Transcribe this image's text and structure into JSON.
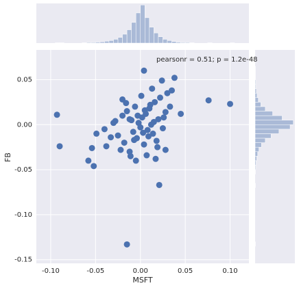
{
  "chart_data": [
    {
      "type": "scatter",
      "annotation": "pearsonr = 0.51; p = 1.2e-48",
      "x_label": "MSFT",
      "y_label": "FB",
      "color": "#4c72b0",
      "grid": true,
      "x": [
        -0.093,
        -0.09,
        -0.058,
        -0.052,
        -0.054,
        -0.049,
        -0.015,
        0.021,
        0.004,
        0.038,
        0.076,
        0.1,
        0.024,
        0.045,
        -0.038,
        -0.033,
        -0.04,
        -0.028,
        -0.025,
        -0.02,
        -0.018,
        -0.015,
        -0.012,
        -0.01,
        -0.008,
        -0.006,
        -0.004,
        -0.002,
        0.0,
        0.002,
        0.004,
        0.006,
        0.008,
        0.01,
        0.012,
        0.014,
        0.016,
        0.018,
        0.02,
        0.022,
        0.025,
        0.028,
        0.03,
        0.033,
        -0.022,
        -0.016,
        -0.011,
        -0.005,
        0.001,
        0.007,
        0.013,
        0.019,
        0.026,
        -0.03,
        -0.003,
        0.009,
        0.015,
        0.035,
        0.028,
        -0.012,
        0.005,
        -0.007,
        0.011,
        0.003,
        -0.02,
        0.017
      ],
      "values": [
        0.011,
        -0.024,
        -0.04,
        -0.046,
        -0.026,
        -0.01,
        -0.133,
        -0.067,
        0.06,
        0.052,
        0.027,
        0.023,
        0.049,
        0.012,
        -0.024,
        -0.014,
        -0.005,
        0.004,
        -0.012,
        0.01,
        -0.02,
        0.015,
        -0.03,
        0.005,
        -0.008,
        0.02,
        -0.015,
        0.002,
        -0.003,
        0.008,
        -0.022,
        0.012,
        -0.006,
        0.018,
        0.0,
        -0.01,
        0.025,
        -0.018,
        0.006,
        0.03,
        -0.004,
        0.014,
        0.035,
        0.02,
        -0.028,
        0.024,
        -0.035,
        -0.04,
        0.032,
        -0.034,
        0.04,
        -0.025,
        0.008,
        0.002,
        0.01,
        -0.013,
        0.003,
        0.038,
        -0.028,
        0.006,
        0.016,
        -0.017,
        0.022,
        -0.009,
        0.028,
        -0.038
      ],
      "xlim": [
        -0.116,
        0.121
      ],
      "ylim": [
        -0.154,
        0.083
      ],
      "xticks": [
        {
          "value": -0.1,
          "label": "-0.10"
        },
        {
          "value": -0.05,
          "label": "-0.05"
        },
        {
          "value": 0,
          "label": "0.00"
        },
        {
          "value": 0.05,
          "label": "0.05"
        },
        {
          "value": 0.1,
          "label": "0.10"
        }
      ],
      "yticks": [
        {
          "value": 0.05,
          "label": "0.05"
        },
        {
          "value": 0,
          "label": "0.00"
        },
        {
          "value": -0.05,
          "label": "-0.05"
        },
        {
          "value": -0.1,
          "label": "-0.10"
        },
        {
          "value": -0.15,
          "label": "-0.15"
        }
      ]
    },
    {
      "type": "histogram",
      "orientation": "vertical",
      "color": "#4c72b0",
      "bins": [
        -0.095,
        -0.09,
        -0.085,
        -0.08,
        -0.075,
        -0.07,
        -0.065,
        -0.06,
        -0.055,
        -0.05,
        -0.045,
        -0.04,
        -0.035,
        -0.03,
        -0.025,
        -0.02,
        -0.015,
        -0.01,
        -0.005,
        0,
        0.005,
        0.01,
        0.015,
        0.02,
        0.025,
        0.03,
        0.035,
        0.04,
        0.045,
        0.05,
        0.055,
        0.06,
        0.065,
        0.07,
        0.075,
        0.08,
        0.085,
        0.09,
        0.095,
        0.1,
        0.105
      ],
      "values": [
        1,
        1,
        0,
        0,
        0,
        0,
        1,
        2,
        2,
        3,
        4,
        6,
        8,
        12,
        18,
        28,
        42,
        65,
        95,
        120,
        80,
        50,
        32,
        20,
        12,
        8,
        5,
        3,
        2,
        2,
        1,
        0,
        0,
        0,
        1,
        0,
        0,
        0,
        0,
        1
      ],
      "xlim": [
        -0.116,
        0.121
      ],
      "ylim": [
        0,
        125
      ]
    },
    {
      "type": "histogram",
      "orientation": "horizontal",
      "color": "#4c72b0",
      "bins": [
        -0.135,
        -0.13,
        -0.125,
        -0.12,
        -0.115,
        -0.11,
        -0.105,
        -0.1,
        -0.095,
        -0.09,
        -0.085,
        -0.08,
        -0.075,
        -0.07,
        -0.065,
        -0.06,
        -0.055,
        -0.05,
        -0.045,
        -0.04,
        -0.035,
        -0.03,
        -0.025,
        -0.02,
        -0.015,
        -0.01,
        -0.005,
        0,
        0.005,
        0.01,
        0.015,
        0.02,
        0.025,
        0.03,
        0.035,
        0.04,
        0.045,
        0.05,
        0.055,
        0.06,
        0.065
      ],
      "values": [
        1,
        0,
        0,
        0,
        0,
        0,
        0,
        0,
        0,
        0,
        0,
        0,
        0,
        1,
        0,
        0,
        1,
        2,
        3,
        5,
        8,
        12,
        20,
        32,
        50,
        75,
        110,
        120,
        85,
        55,
        32,
        18,
        10,
        6,
        4,
        2,
        2,
        1,
        1,
        1
      ],
      "ylim": [
        -0.154,
        0.083
      ],
      "xlim": [
        0,
        125
      ]
    }
  ]
}
